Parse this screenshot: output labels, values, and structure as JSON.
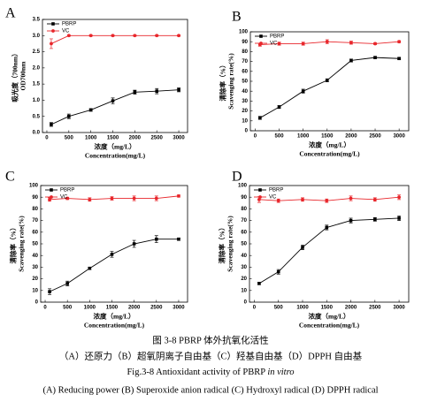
{
  "chart_data": [
    {
      "type": "line",
      "label": "A",
      "y_title": [
        "吸光度（700nm）",
        "OD700nm"
      ],
      "x_title": [
        "浓度（mg/L）",
        "Concentration(mg/L)"
      ],
      "x": [
        100,
        500,
        1000,
        1500,
        2000,
        2500,
        3000
      ],
      "xlim": [
        -100,
        3200
      ],
      "xticks": [
        0,
        500,
        1000,
        1500,
        2000,
        2500,
        3000
      ],
      "ylim": [
        0,
        3.5
      ],
      "yticks": [
        {
          "value": 0,
          "label": "0.0"
        },
        {
          "value": 0.5,
          "label": "0.5"
        },
        {
          "value": 1,
          "label": "1.0"
        },
        {
          "value": 1.5,
          "label": "1.5"
        },
        {
          "value": 2,
          "label": "2.0"
        },
        {
          "value": 2.5,
          "label": "2.5"
        },
        {
          "value": 3,
          "label": "3.0"
        },
        {
          "value": 3.5,
          "label": "3.5"
        }
      ],
      "legend": "upper left",
      "series": [
        {
          "name": "PBRP",
          "color": "#000000",
          "marker": "square",
          "values": [
            0.25,
            0.5,
            0.7,
            0.98,
            1.25,
            1.28,
            1.32
          ],
          "errors": [
            0.06,
            0.07,
            0.04,
            0.09,
            0.06,
            0.08,
            0.06
          ]
        },
        {
          "name": "VC",
          "color": "#e8262b",
          "marker": "circle",
          "values": [
            2.75,
            3.0,
            3.0,
            3.0,
            3.0,
            3.0,
            3.0
          ],
          "errors": [
            0.15,
            0.02,
            0.02,
            0.02,
            0.02,
            0.02,
            0.02
          ]
        }
      ]
    },
    {
      "type": "line",
      "label": "B",
      "y_title": [
        "清除率（%）",
        "Scavenging rate(%)"
      ],
      "x_title": [
        "浓度（mg/L）",
        "Concentration(mg/L)"
      ],
      "x": [
        100,
        500,
        1000,
        1500,
        2000,
        2500,
        3000
      ],
      "xlim": [
        -100,
        3200
      ],
      "xticks": [
        0,
        500,
        1000,
        1500,
        2000,
        2500,
        3000
      ],
      "ylim": [
        0,
        100
      ],
      "yticks": [
        0,
        10,
        20,
        30,
        40,
        50,
        60,
        70,
        80,
        90,
        100
      ],
      "legend": "upper left",
      "series": [
        {
          "name": "PBRP",
          "color": "#000000",
          "marker": "square",
          "values": [
            13,
            24,
            40,
            51,
            71,
            74,
            73
          ],
          "errors": [
            1.5,
            1.5,
            2,
            1.5,
            1.5,
            1,
            1
          ]
        },
        {
          "name": "VC",
          "color": "#e8262b",
          "marker": "circle",
          "values": [
            87,
            88,
            88,
            90,
            89,
            88,
            90
          ],
          "errors": [
            1.5,
            1.5,
            1.5,
            2,
            1.5,
            1,
            1
          ]
        }
      ]
    },
    {
      "type": "line",
      "label": "C",
      "y_title": [
        "清除率（%）",
        "Scavenging rate(%)"
      ],
      "x_title": [
        "浓度（mg/L）",
        "Concentration(mg/L)"
      ],
      "x": [
        100,
        500,
        1000,
        1500,
        2000,
        2500,
        3000
      ],
      "xlim": [
        -100,
        3200
      ],
      "xticks": [
        0,
        500,
        1000,
        1500,
        2000,
        2500,
        3000
      ],
      "ylim": [
        0,
        100
      ],
      "yticks": [
        0,
        10,
        20,
        30,
        40,
        50,
        60,
        70,
        80,
        90,
        100
      ],
      "legend": "upper left",
      "series": [
        {
          "name": "PBRP",
          "color": "#000000",
          "marker": "square",
          "values": [
            9,
            16,
            29,
            41,
            50,
            54,
            54
          ],
          "errors": [
            2.5,
            2,
            1,
            2.5,
            3,
            3,
            1
          ]
        },
        {
          "name": "VC",
          "color": "#e8262b",
          "marker": "circle",
          "values": [
            88,
            89,
            88,
            89,
            89,
            89,
            91
          ],
          "errors": [
            1.5,
            1,
            1.5,
            1.5,
            2,
            2,
            1
          ]
        }
      ]
    },
    {
      "type": "line",
      "label": "D",
      "y_title": [
        "清除率（%）",
        "Scavenging rate(%)"
      ],
      "x_title": [
        "浓度（mg/L）",
        "Concentration(mg/L)"
      ],
      "x": [
        100,
        500,
        1000,
        1500,
        2000,
        2500,
        3000
      ],
      "xlim": [
        -100,
        3200
      ],
      "xticks": [
        0,
        500,
        1000,
        1500,
        2000,
        2500,
        3000
      ],
      "ylim": [
        0,
        100
      ],
      "yticks": [
        0,
        10,
        20,
        30,
        40,
        50,
        60,
        70,
        80,
        90,
        100
      ],
      "legend": "upper left",
      "series": [
        {
          "name": "PBRP",
          "color": "#000000",
          "marker": "square",
          "values": [
            16,
            26,
            47,
            64,
            70,
            71,
            72
          ],
          "errors": [
            1,
            2,
            2,
            2,
            2,
            1.5,
            2
          ]
        },
        {
          "name": "VC",
          "color": "#e8262b",
          "marker": "circle",
          "values": [
            88,
            87,
            88,
            87,
            89,
            88,
            90
          ],
          "errors": [
            2.5,
            1.5,
            1.5,
            1.5,
            2,
            1.5,
            2
          ]
        }
      ]
    }
  ],
  "caption": {
    "cn_title": "图 3-8 PBRP 体外抗氧化活性",
    "cn_parts": "（A）还原力（B）超氧阴离子自由基（C）羟基自由基（D）DPPH 自由基",
    "en_title": "Fig.3-8 Antioxidant activity of PBRP ",
    "en_title_italic": "in vitro",
    "en_parts": "(A) Reducing power (B) Superoxide anion radical (C) Hydroxyl radical (D) DPPH radical"
  }
}
